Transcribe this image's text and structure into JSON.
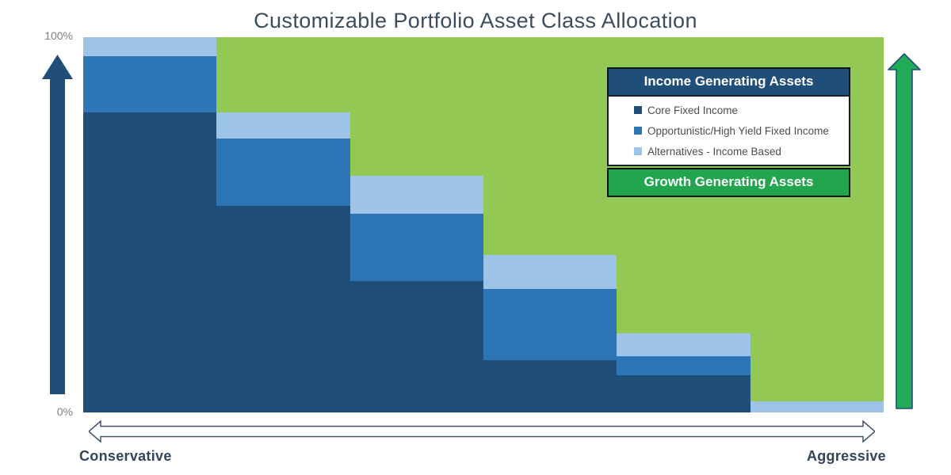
{
  "title": "Customizable Portfolio Asset Class Allocation",
  "y_axis": {
    "top_label": "100%",
    "bottom_label": "0%"
  },
  "x_axis": {
    "left_label": "Conservative",
    "right_label": "Aggressive"
  },
  "legend": {
    "income_header": "Income Generating Assets",
    "growth_header": "Growth Generating Assets",
    "items": [
      {
        "label": "Core Fixed Income",
        "color": "#1F4E79"
      },
      {
        "label": "Opportunistic/High Yield Fixed Income",
        "color": "#2E75B6"
      },
      {
        "label": "Alternatives - Income Based",
        "color": "#9DC3E6"
      }
    ]
  },
  "colors": {
    "core_fixed_income": "#1F4E79",
    "opportunistic_high_yield": "#2E75B6",
    "alternatives_income_based": "#9DC3E6",
    "growth_area": "#92C853",
    "growth_arrow": "#21AB57",
    "income_arrow": "#1F4E79",
    "legend_income_header_bg": "#1F4E79",
    "legend_growth_header_bg": "#23A44F",
    "title_text": "#3d4d60",
    "axis_tick_text": "#7f7f7f",
    "axis_label_text": "#32455b"
  },
  "chart_data": {
    "type": "area",
    "subtype": "stacked-step-allocation",
    "title": "Customizable Portfolio Asset Class Allocation",
    "xlabel_left": "Conservative",
    "xlabel_right": "Aggressive",
    "y_ticks": [
      "0%",
      "100%"
    ],
    "ylim": [
      0,
      100
    ],
    "unit": "percent",
    "n_steps": 6,
    "grid": false,
    "legend_position": "top-right",
    "series": [
      {
        "name": "Core Fixed Income",
        "color": "#1F4E79",
        "values": [
          80,
          55,
          35,
          14,
          10,
          0
        ]
      },
      {
        "name": "Opportunistic/High Yield Fixed Income",
        "color": "#2E75B6",
        "values": [
          15,
          18,
          18,
          19,
          5,
          0
        ]
      },
      {
        "name": "Alternatives - Income Based",
        "color": "#9DC3E6",
        "values": [
          5,
          7,
          10,
          9,
          6,
          3
        ]
      },
      {
        "name": "Growth Generating Assets",
        "color": "#92C853",
        "values": [
          0,
          20,
          37,
          58,
          79,
          97
        ]
      }
    ]
  }
}
